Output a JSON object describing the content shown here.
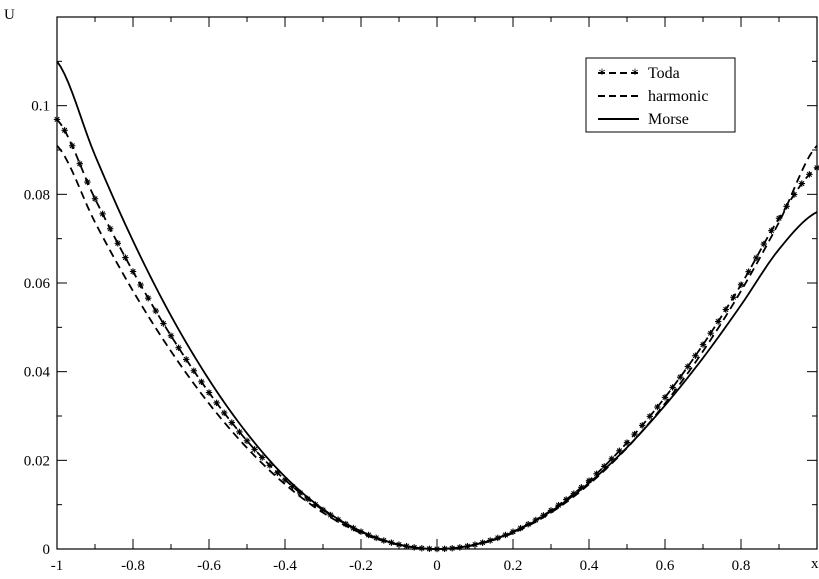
{
  "chart_data": {
    "type": "line",
    "title": "",
    "xlabel": "x",
    "ylabel": "U",
    "xlim": [
      -1,
      1
    ],
    "ylim": [
      0,
      0.12
    ],
    "x_ticks": [
      "-1",
      "-0.8",
      "-0.6",
      "-0.4",
      "-0.2",
      "0",
      "0.2",
      "0.4",
      "0.6",
      "0.8"
    ],
    "y_ticks": [
      "0",
      "0.02",
      "0.04",
      "0.06",
      "0.08",
      "0.1"
    ],
    "grid": false,
    "legend_position": "top-right",
    "series": [
      {
        "name": "Toda",
        "style": "dashed-star",
        "x": [
          -1,
          -0.9,
          -0.8,
          -0.7,
          -0.6,
          -0.5,
          -0.4,
          -0.3,
          -0.2,
          -0.1,
          0,
          0.1,
          0.2,
          0.3,
          0.4,
          0.5,
          0.6,
          0.7,
          0.8,
          0.9,
          1
        ],
        "y": [
          0.0969,
          0.079,
          0.0626,
          0.0481,
          0.0353,
          0.0244,
          0.0156,
          0.0088,
          0.0039,
          0.001,
          0,
          0.001,
          0.0039,
          0.0087,
          0.0154,
          0.024,
          0.0342,
          0.0461,
          0.0596,
          0.0746,
          0.086
        ]
      },
      {
        "name": "harmonic",
        "style": "dashed",
        "x": [
          -1,
          -0.9,
          -0.8,
          -0.7,
          -0.6,
          -0.5,
          -0.4,
          -0.3,
          -0.2,
          -0.1,
          0,
          0.1,
          0.2,
          0.3,
          0.4,
          0.5,
          0.6,
          0.7,
          0.8,
          0.9,
          1
        ],
        "y": [
          0.091,
          0.0737,
          0.0582,
          0.0446,
          0.0328,
          0.0228,
          0.0146,
          0.0082,
          0.0036,
          0.0009,
          0,
          0.0009,
          0.0036,
          0.0082,
          0.0146,
          0.0228,
          0.0328,
          0.0446,
          0.0582,
          0.0737,
          0.091
        ]
      },
      {
        "name": "Morse",
        "style": "solid",
        "x": [
          -1,
          -0.9,
          -0.8,
          -0.7,
          -0.6,
          -0.5,
          -0.4,
          -0.3,
          -0.2,
          -0.1,
          0,
          0.1,
          0.2,
          0.3,
          0.4,
          0.5,
          0.6,
          0.7,
          0.8,
          0.9,
          1
        ],
        "y": [
          0.11,
          0.0888,
          0.0695,
          0.0526,
          0.0382,
          0.0261,
          0.0163,
          0.009,
          0.004,
          0.001,
          0,
          0.001,
          0.0038,
          0.0085,
          0.0149,
          0.0229,
          0.0324,
          0.0431,
          0.055,
          0.0676,
          0.076
        ]
      }
    ]
  }
}
